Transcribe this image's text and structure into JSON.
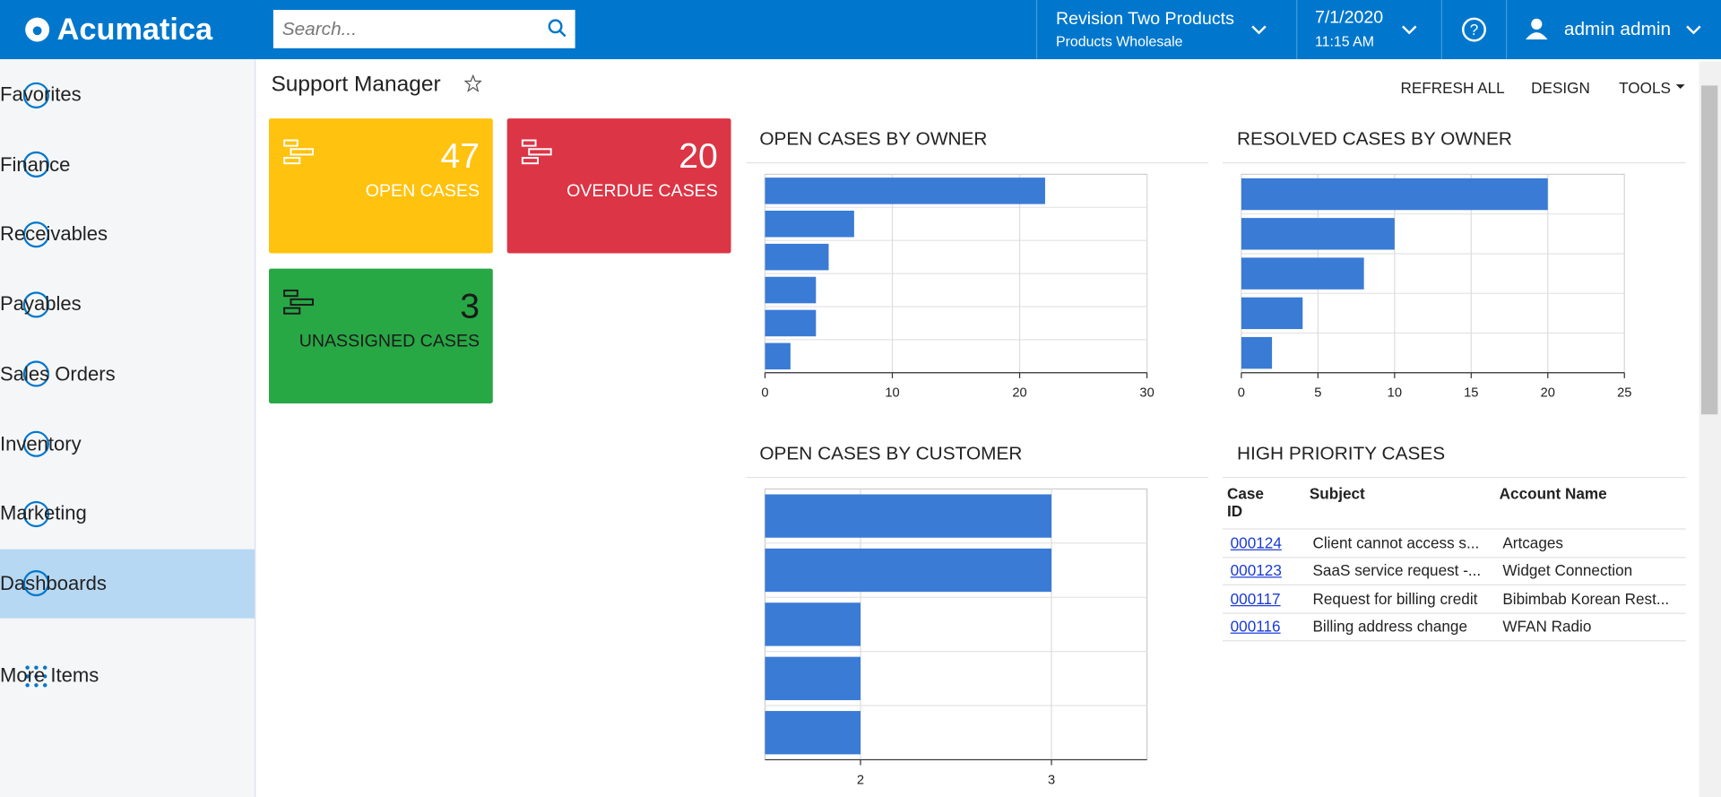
{
  "header": {
    "logo": "Acumatica",
    "search_placeholder": "Search...",
    "company": "Revision Two Products",
    "branch": "Products Wholesale",
    "date": "7/1/2020",
    "time": "11:15 AM",
    "user": "admin admin"
  },
  "sidebar": {
    "items": [
      "Favorites",
      "Finance",
      "Receivables",
      "Payables",
      "Sales Orders",
      "Inventory",
      "Marketing",
      "Dashboards"
    ],
    "active": 7,
    "more": "More Items"
  },
  "page": {
    "title": "Support Manager",
    "toolbar": [
      "REFRESH ALL",
      "DESIGN",
      "TOOLS"
    ]
  },
  "tiles": [
    {
      "value": 47,
      "label": "OPEN CASES",
      "color": "#ffc20e",
      "text_color": "#ffffff"
    },
    {
      "value": 20,
      "label": "OVERDUE CASES",
      "color": "#dc3545",
      "text_color": "#ffffff"
    },
    {
      "value": 3,
      "label": "UNASSIGNED CASES",
      "color": "#28a745",
      "text_color": "#1a1a1a"
    }
  ],
  "charts": [
    {
      "type": "bar",
      "title": "OPEN CASES BY OWNER",
      "values": [
        22,
        7,
        5,
        4,
        4,
        2
      ],
      "xlim": [
        0,
        30
      ],
      "xticks": [
        0,
        10,
        20,
        30
      ],
      "color": "#3a7bd5"
    },
    {
      "type": "bar",
      "title": "RESOLVED CASES BY OWNER",
      "values": [
        20,
        10,
        8,
        4,
        2
      ],
      "xlim": [
        0,
        25
      ],
      "xticks": [
        0,
        5,
        10,
        15,
        20,
        25
      ],
      "color": "#3a7bd5"
    },
    {
      "type": "bar",
      "title": "OPEN CASES BY CUSTOMER",
      "values": [
        3,
        3,
        2,
        2,
        2
      ],
      "xlim": [
        1.5,
        3.5
      ],
      "xticks": [
        2,
        3
      ],
      "color": "#3a7bd5"
    }
  ],
  "table": {
    "title": "HIGH PRIORITY CASES",
    "columns": [
      "Case ID",
      "Subject",
      "Account Name"
    ],
    "rows": [
      [
        "000124",
        "Client cannot access s...",
        "Artcages"
      ],
      [
        "000123",
        "SaaS service request -...",
        "Widget Connection"
      ],
      [
        "000117",
        "Request for billing credit",
        "Bibimbab Korean Rest..."
      ],
      [
        "000116",
        "Billing address change",
        "WFAN Radio"
      ]
    ]
  }
}
